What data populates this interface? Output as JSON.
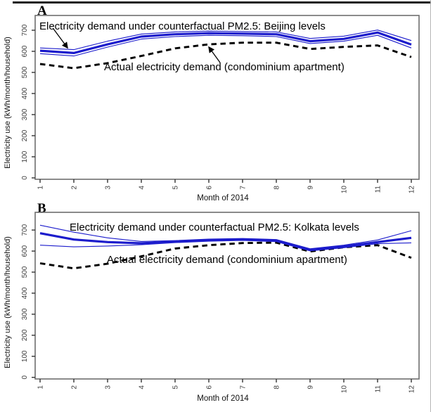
{
  "page": {
    "top_bar_color": "#1b1b1b",
    "background": "#ffffff"
  },
  "colors": {
    "counterfactual_line": "#1c1ccc",
    "actual_line": "#000000",
    "box_stroke": "#6e6e6e",
    "tick_text": "#3c3c3c"
  },
  "panels": [
    {
      "letter": "A",
      "title": "Electricity demand under counterfactual PM2.5: Beijing levels",
      "actual_label": "Actual electricity demand (condominium apartment)",
      "xlabel": "Month of 2014",
      "ylabel": "Electricity use (kWh/month/household)"
    },
    {
      "letter": "B",
      "title": "Electricity demand under counterfactual PM2.5: Kolkata levels",
      "actual_label": "Actual electricity demand (condominium apartment)",
      "xlabel": "Month of 2014",
      "ylabel": "Electricity use (kWh/month/household)"
    }
  ],
  "chart_data": [
    {
      "type": "line",
      "title": "Electricity demand under counterfactual PM2.5: Beijing levels",
      "xlabel": "Month of 2014",
      "ylabel": "Electricity use (kWh/month/household)",
      "x": [
        1,
        2,
        3,
        4,
        5,
        6,
        7,
        8,
        9,
        10,
        11,
        12
      ],
      "xticks": [
        1,
        2,
        3,
        4,
        5,
        6,
        7,
        8,
        9,
        10,
        11,
        12
      ],
      "yticks": [
        0,
        100,
        200,
        300,
        400,
        500,
        600,
        700
      ],
      "ylim": [
        0,
        780
      ],
      "grid": false,
      "legend": "none",
      "series": [
        {
          "name": "counterfactual_mean",
          "style": "solid-thick",
          "color": "#1c1ccc",
          "values": [
            603,
            592,
            633,
            670,
            681,
            686,
            684,
            681,
            648,
            659,
            689,
            632
          ]
        },
        {
          "name": "counterfactual_upper",
          "style": "solid-thin",
          "color": "#1c1ccc",
          "values": [
            616,
            608,
            648,
            682,
            692,
            696,
            694,
            692,
            661,
            672,
            701,
            651
          ]
        },
        {
          "name": "counterfactual_lower",
          "style": "solid-thin",
          "color": "#1c1ccc",
          "values": [
            589,
            578,
            620,
            658,
            670,
            676,
            674,
            670,
            637,
            648,
            676,
            616
          ]
        },
        {
          "name": "actual",
          "style": "dashed-thick",
          "color": "#000000",
          "values": [
            540,
            520,
            544,
            578,
            614,
            633,
            641,
            641,
            611,
            621,
            628,
            573
          ]
        }
      ]
    },
    {
      "type": "line",
      "title": "Electricity demand under counterfactual PM2.5: Kolkata levels",
      "xlabel": "Month of 2014",
      "ylabel": "Electricity use (kWh/month/household)",
      "x": [
        1,
        2,
        3,
        4,
        5,
        6,
        7,
        8,
        9,
        10,
        11,
        12
      ],
      "xticks": [
        1,
        2,
        3,
        4,
        5,
        6,
        7,
        8,
        9,
        10,
        11,
        12
      ],
      "yticks": [
        0,
        100,
        200,
        300,
        400,
        500,
        600,
        700
      ],
      "ylim": [
        0,
        780
      ],
      "grid": false,
      "legend": "none",
      "series": [
        {
          "name": "counterfactual_mean",
          "style": "solid-thick",
          "color": "#1c1ccc",
          "values": [
            685,
            655,
            643,
            637,
            645,
            652,
            655,
            650,
            606,
            622,
            643,
            663
          ]
        },
        {
          "name": "counterfactual_upper",
          "style": "solid-thin",
          "color": "#1c1ccc",
          "values": [
            723,
            690,
            663,
            646,
            650,
            657,
            660,
            655,
            611,
            628,
            653,
            697
          ]
        },
        {
          "name": "counterfactual_lower",
          "style": "solid-thin",
          "color": "#1c1ccc",
          "values": [
            628,
            620,
            624,
            630,
            640,
            647,
            651,
            645,
            601,
            616,
            635,
            639
          ]
        },
        {
          "name": "actual",
          "style": "dashed-thick",
          "color": "#000000",
          "values": [
            542,
            518,
            540,
            575,
            612,
            628,
            638,
            640,
            598,
            618,
            628,
            568
          ]
        }
      ]
    }
  ]
}
